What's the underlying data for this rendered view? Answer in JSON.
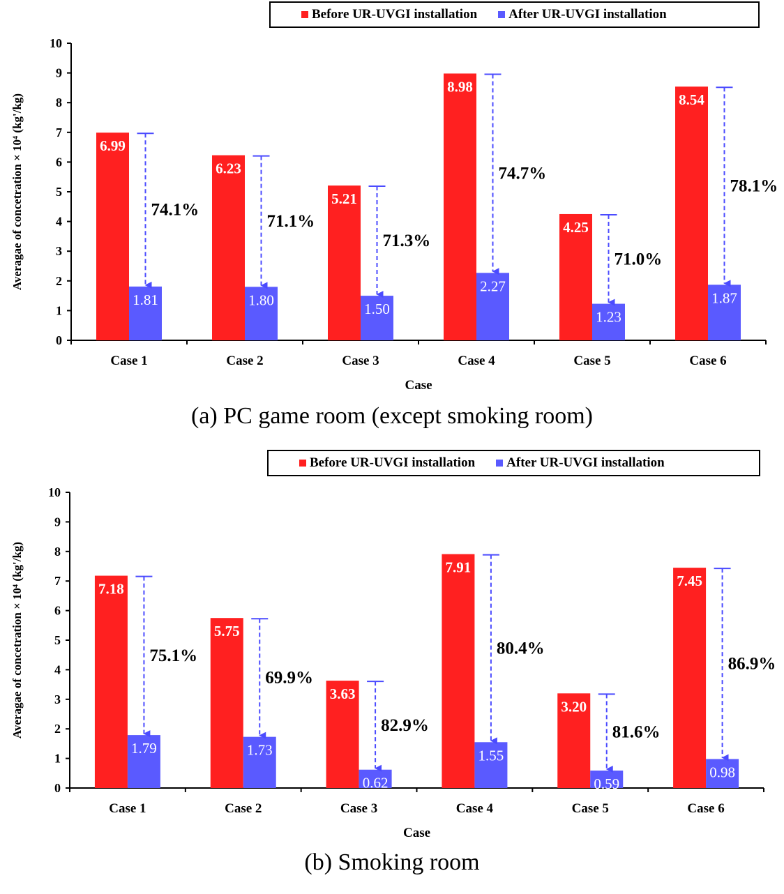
{
  "colors": {
    "before": "#ff2020",
    "after": "#5a5aff",
    "arrow": "#4b4bff"
  },
  "chart_data": [
    {
      "type": "bar",
      "caption": "(a) PC game room (except smoking room)",
      "xlabel": "Case",
      "ylabel": "Averagae of concetration × 10⁴ (kg'/kg)",
      "ylim": [
        0,
        10
      ],
      "yticks": [
        "0",
        "1",
        "2",
        "3",
        "4",
        "5",
        "6",
        "7",
        "8",
        "9",
        "10"
      ],
      "categories": [
        "Case 1",
        "Case 2",
        "Case 3",
        "Case 4",
        "Case 5",
        "Case 6"
      ],
      "series": [
        {
          "name": "Before UR-UVGI installation",
          "values": [
            6.99,
            6.23,
            5.21,
            8.98,
            4.25,
            8.54
          ],
          "labels": [
            "6.99",
            "6.23",
            "5.21",
            "8.98",
            "4.25",
            "8.54"
          ]
        },
        {
          "name": "After UR-UVGI installation",
          "values": [
            1.81,
            1.8,
            1.5,
            2.27,
            1.23,
            1.87
          ],
          "labels": [
            "1.81",
            "1.80",
            "1.50",
            "2.27",
            "1.23",
            "1.87"
          ]
        }
      ],
      "reductions": [
        "74.1%",
        "71.1%",
        "71.3%",
        "74.7%",
        "71.0%",
        "78.1%"
      ],
      "legend": "top-right"
    },
    {
      "type": "bar",
      "caption": "(b) Smoking room",
      "xlabel": "Case",
      "ylabel": "Averagae of concetration × 10⁴ (kg'/kg)",
      "ylim": [
        0,
        10
      ],
      "yticks": [
        "0",
        "1",
        "2",
        "3",
        "4",
        "5",
        "6",
        "7",
        "8",
        "9",
        "10"
      ],
      "categories": [
        "Case 1",
        "Case 2",
        "Case 3",
        "Case 4",
        "Case 5",
        "Case 6"
      ],
      "series": [
        {
          "name": "Before UR-UVGI installation",
          "values": [
            7.18,
            5.75,
            3.63,
            7.91,
            3.2,
            7.45
          ],
          "labels": [
            "7.18",
            "5.75",
            "3.63",
            "7.91",
            "3.20",
            "7.45"
          ]
        },
        {
          "name": "After UR-UVGI installation",
          "values": [
            1.79,
            1.73,
            0.62,
            1.55,
            0.59,
            0.98
          ],
          "labels": [
            "1.79",
            "1.73",
            "0.62",
            "1.55",
            "0.59",
            "0.98"
          ]
        }
      ],
      "reductions": [
        "75.1%",
        "69.9%",
        "82.9%",
        "80.4%",
        "81.6%",
        "86.9%"
      ],
      "legend": "top-right"
    }
  ]
}
